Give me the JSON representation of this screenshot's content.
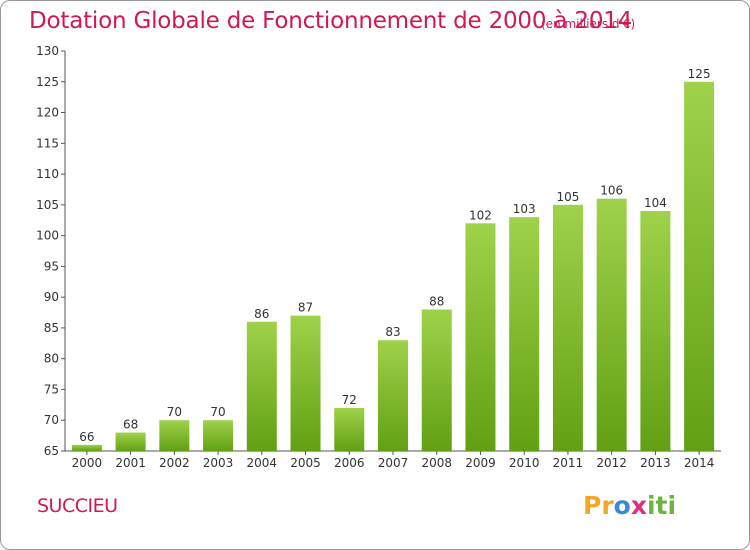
{
  "header": {
    "title": "Dotation Globale de Fonctionnement de 2000 à 2014",
    "subtitle": "(en milliers d'€)"
  },
  "footer": {
    "town": "SUCCIEU",
    "logo_text": "Proxiti"
  },
  "colors": {
    "title": "#d01a4e",
    "bar_light": "#9fd24a",
    "bar_dark": "#62a013",
    "axis": "#555555",
    "grid": "#cccccc"
  },
  "chart_data": {
    "type": "bar",
    "title": "Dotation Globale de Fonctionnement de 2000 à 2014",
    "subtitle": "(en milliers d'€)",
    "categories": [
      "2000",
      "2001",
      "2002",
      "2003",
      "2004",
      "2005",
      "2006",
      "2007",
      "2008",
      "2009",
      "2010",
      "2011",
      "2012",
      "2013",
      "2014"
    ],
    "values": [
      66,
      68,
      70,
      70,
      86,
      87,
      72,
      83,
      88,
      102,
      103,
      105,
      106,
      104,
      125
    ],
    "ylim": [
      65,
      130
    ],
    "yticks": [
      65,
      70,
      75,
      80,
      85,
      90,
      95,
      100,
      105,
      110,
      115,
      120,
      125,
      130
    ],
    "grid": false,
    "data_labels": true
  }
}
